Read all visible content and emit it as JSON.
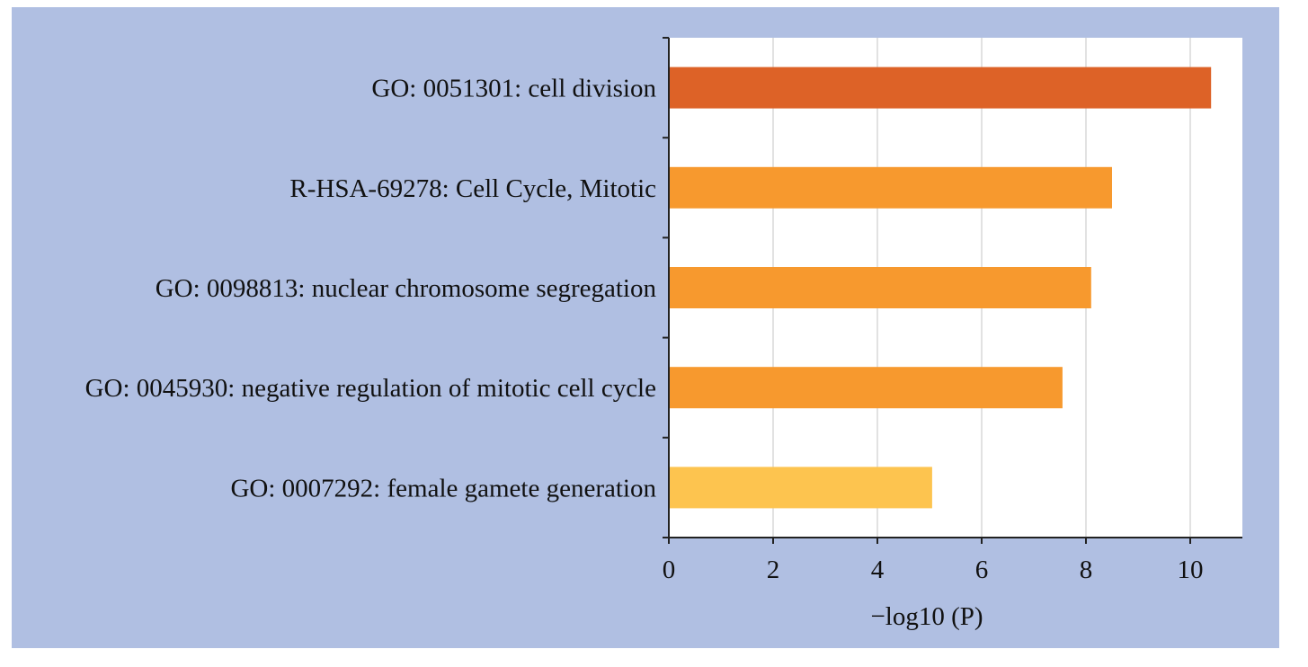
{
  "chart_data": {
    "type": "bar",
    "orientation": "horizontal",
    "categories": [
      "GO: 0051301: cell division",
      "R-HSA-69278: Cell Cycle, Mitotic",
      "GO: 0098813: nuclear chromosome segregation",
      "GO: 0045930: negative regulation of mitotic cell cycle",
      "GO: 0007292: female gamete generation"
    ],
    "values": [
      10.4,
      8.5,
      8.1,
      7.55,
      5.05
    ],
    "colors": [
      "#dd6227",
      "#f7992e",
      "#f7992e",
      "#f7992e",
      "#fdc44f"
    ],
    "xlabel": "−log10 (P)",
    "ylabel": "",
    "title": "",
    "xlim": [
      0,
      11
    ],
    "xticks": [
      0,
      2,
      4,
      6,
      8,
      10
    ],
    "grid": "vertical",
    "legend": "none"
  },
  "colors": {
    "panel_background": "#b0bfe2",
    "plot_background": "#ffffff",
    "gridline": "#d9d9d9",
    "axis": "#222222"
  }
}
